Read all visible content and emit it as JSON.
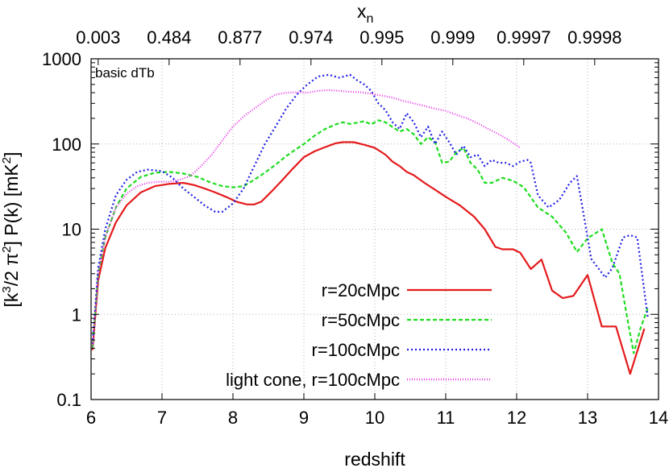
{
  "chart_data": {
    "type": "line",
    "annotation": "basic dTb",
    "xlabel": "redshift",
    "ylabel_parts": {
      "a": "[k",
      "a_sup": "3",
      "b": "/2 π",
      "b_sup": "2",
      "c": "] P(k) [mK",
      "c_sup": "2",
      "d": "]"
    },
    "top_axis_label": {
      "main": "x",
      "sub": "n"
    },
    "xlim": [
      6,
      14
    ],
    "ylim": [
      0.1,
      1000
    ],
    "yscale": "log",
    "grid": true,
    "legend_position": "bottom-right",
    "x_ticks": [
      "6",
      "7",
      "8",
      "9",
      "10",
      "11",
      "12",
      "13",
      "14"
    ],
    "y_ticks": [
      "0.1",
      "1",
      "10",
      "100",
      "1000"
    ],
    "top_ticks": [
      {
        "z": 6.1,
        "label": "0.003"
      },
      {
        "z": 7.1,
        "label": "0.484"
      },
      {
        "z": 8.1,
        "label": "0.877"
      },
      {
        "z": 9.1,
        "label": "0.974"
      },
      {
        "z": 10.1,
        "label": "0.995"
      },
      {
        "z": 11.1,
        "label": "0.999"
      },
      {
        "z": 12.1,
        "label": "0.9997"
      },
      {
        "z": 13.1,
        "label": "0.9998"
      }
    ],
    "series": [
      {
        "name": "r=20cMpc",
        "color": "#e41a1c",
        "dash": "solid",
        "points": [
          [
            6.02,
            0.38
          ],
          [
            6.1,
            2.5
          ],
          [
            6.2,
            6
          ],
          [
            6.35,
            12
          ],
          [
            6.5,
            19
          ],
          [
            6.7,
            27
          ],
          [
            6.9,
            32
          ],
          [
            7.1,
            34
          ],
          [
            7.3,
            35
          ],
          [
            7.45,
            33
          ],
          [
            7.6,
            30
          ],
          [
            7.75,
            27
          ],
          [
            7.9,
            24
          ],
          [
            8.05,
            21
          ],
          [
            8.2,
            19.5
          ],
          [
            8.3,
            19.5
          ],
          [
            8.4,
            21
          ],
          [
            8.55,
            28
          ],
          [
            8.7,
            38
          ],
          [
            8.85,
            52
          ],
          [
            9.0,
            70
          ],
          [
            9.15,
            82
          ],
          [
            9.3,
            92
          ],
          [
            9.45,
            102
          ],
          [
            9.55,
            105
          ],
          [
            9.7,
            105
          ],
          [
            9.85,
            98
          ],
          [
            10.0,
            90
          ],
          [
            10.15,
            75
          ],
          [
            10.25,
            62
          ],
          [
            10.35,
            55
          ],
          [
            10.45,
            47
          ],
          [
            10.55,
            43
          ],
          [
            10.7,
            35
          ],
          [
            10.85,
            29
          ],
          [
            11.0,
            24
          ],
          [
            11.2,
            19
          ],
          [
            11.4,
            14
          ],
          [
            11.55,
            10
          ],
          [
            11.7,
            6.2
          ],
          [
            11.8,
            5.8
          ],
          [
            11.95,
            5.8
          ],
          [
            12.05,
            5.3
          ],
          [
            12.2,
            3.4
          ],
          [
            12.35,
            4.4
          ],
          [
            12.5,
            1.9
          ],
          [
            12.65,
            1.55
          ],
          [
            12.8,
            1.65
          ],
          [
            13.0,
            2.9
          ],
          [
            13.2,
            0.72
          ],
          [
            13.4,
            0.72
          ],
          [
            13.6,
            0.2
          ],
          [
            13.8,
            0.68
          ]
        ]
      },
      {
        "name": "r=50cMpc",
        "color": "#1edc1e",
        "dash": "dashed",
        "points": [
          [
            6.02,
            0.4
          ],
          [
            6.1,
            3
          ],
          [
            6.2,
            8
          ],
          [
            6.35,
            18
          ],
          [
            6.5,
            30
          ],
          [
            6.7,
            41
          ],
          [
            6.9,
            46
          ],
          [
            7.1,
            47
          ],
          [
            7.3,
            45
          ],
          [
            7.5,
            41
          ],
          [
            7.7,
            35
          ],
          [
            7.85,
            32
          ],
          [
            8.0,
            31
          ],
          [
            8.15,
            32
          ],
          [
            8.3,
            38
          ],
          [
            8.45,
            46
          ],
          [
            8.6,
            57
          ],
          [
            8.75,
            72
          ],
          [
            8.9,
            88
          ],
          [
            9.0,
            100
          ],
          [
            9.15,
            125
          ],
          [
            9.3,
            150
          ],
          [
            9.45,
            170
          ],
          [
            9.55,
            180
          ],
          [
            9.65,
            172
          ],
          [
            9.75,
            178
          ],
          [
            9.85,
            185
          ],
          [
            9.95,
            170
          ],
          [
            10.05,
            190
          ],
          [
            10.15,
            180
          ],
          [
            10.25,
            158
          ],
          [
            10.35,
            140
          ],
          [
            10.45,
            150
          ],
          [
            10.55,
            130
          ],
          [
            10.65,
            100
          ],
          [
            10.75,
            120
          ],
          [
            10.85,
            105
          ],
          [
            10.95,
            60
          ],
          [
            11.05,
            62
          ],
          [
            11.15,
            80
          ],
          [
            11.25,
            90
          ],
          [
            11.35,
            60
          ],
          [
            11.45,
            50
          ],
          [
            11.55,
            35
          ],
          [
            11.65,
            35
          ],
          [
            11.8,
            40
          ],
          [
            11.95,
            37
          ],
          [
            12.1,
            31
          ],
          [
            12.3,
            18
          ],
          [
            12.5,
            14
          ],
          [
            12.7,
            9
          ],
          [
            12.85,
            5.4
          ],
          [
            13.0,
            7.8
          ],
          [
            13.2,
            10
          ],
          [
            13.35,
            4
          ],
          [
            13.45,
            3
          ],
          [
            13.55,
            1
          ],
          [
            13.65,
            0.35
          ],
          [
            13.75,
            0.7
          ],
          [
            13.85,
            1.2
          ]
        ]
      },
      {
        "name": "r=100cMpc",
        "color": "#1e1ee6",
        "dash": "dotted",
        "points": [
          [
            6.02,
            0.45
          ],
          [
            6.1,
            3.5
          ],
          [
            6.2,
            10
          ],
          [
            6.35,
            25
          ],
          [
            6.5,
            38
          ],
          [
            6.65,
            47
          ],
          [
            6.8,
            50
          ],
          [
            7.0,
            48
          ],
          [
            7.15,
            40
          ],
          [
            7.3,
            30
          ],
          [
            7.45,
            24
          ],
          [
            7.6,
            19
          ],
          [
            7.75,
            16
          ],
          [
            7.85,
            16
          ],
          [
            8.0,
            20
          ],
          [
            8.15,
            30
          ],
          [
            8.3,
            55
          ],
          [
            8.45,
            100
          ],
          [
            8.6,
            160
          ],
          [
            8.75,
            260
          ],
          [
            8.9,
            380
          ],
          [
            9.05,
            500
          ],
          [
            9.2,
            620
          ],
          [
            9.35,
            650
          ],
          [
            9.5,
            600
          ],
          [
            9.65,
            650
          ],
          [
            9.75,
            560
          ],
          [
            9.85,
            500
          ],
          [
            9.95,
            420
          ],
          [
            10.05,
            300
          ],
          [
            10.15,
            250
          ],
          [
            10.25,
            180
          ],
          [
            10.35,
            150
          ],
          [
            10.45,
            230
          ],
          [
            10.55,
            180
          ],
          [
            10.65,
            120
          ],
          [
            10.75,
            160
          ],
          [
            10.85,
            100
          ],
          [
            10.95,
            140
          ],
          [
            11.05,
            105
          ],
          [
            11.15,
            75
          ],
          [
            11.25,
            95
          ],
          [
            11.35,
            70
          ],
          [
            11.45,
            75
          ],
          [
            11.55,
            55
          ],
          [
            11.65,
            65
          ],
          [
            11.75,
            60
          ],
          [
            11.85,
            60
          ],
          [
            11.95,
            55
          ],
          [
            12.05,
            62
          ],
          [
            12.15,
            65
          ],
          [
            12.2,
            60
          ],
          [
            12.3,
            25
          ],
          [
            12.45,
            18
          ],
          [
            12.6,
            22
          ],
          [
            12.75,
            35
          ],
          [
            12.85,
            42
          ],
          [
            13.0,
            8
          ],
          [
            13.05,
            4.5
          ],
          [
            13.25,
            2.7
          ],
          [
            13.35,
            3.5
          ],
          [
            13.5,
            8
          ],
          [
            13.6,
            8.5
          ],
          [
            13.7,
            8
          ],
          [
            13.85,
            0.9
          ]
        ]
      },
      {
        "name": "light cone, r=100cMpc",
        "color": "#e633e6",
        "dash": "fine-dotted",
        "points": [
          [
            6.02,
            0.4
          ],
          [
            6.1,
            3
          ],
          [
            6.2,
            8
          ],
          [
            6.35,
            18
          ],
          [
            6.5,
            26
          ],
          [
            6.65,
            32
          ],
          [
            6.8,
            35
          ],
          [
            6.95,
            36
          ],
          [
            7.1,
            36
          ],
          [
            7.25,
            38
          ],
          [
            7.4,
            42
          ],
          [
            7.55,
            55
          ],
          [
            7.7,
            75
          ],
          [
            7.85,
            110
          ],
          [
            8.0,
            160
          ],
          [
            8.15,
            210
          ],
          [
            8.3,
            260
          ],
          [
            8.45,
            320
          ],
          [
            8.6,
            380
          ],
          [
            8.75,
            400
          ],
          [
            8.9,
            405
          ],
          [
            9.05,
            400
          ],
          [
            9.2,
            420
          ],
          [
            9.35,
            430
          ],
          [
            9.5,
            420
          ],
          [
            9.65,
            410
          ],
          [
            9.8,
            405
          ],
          [
            9.95,
            390
          ],
          [
            10.1,
            370
          ],
          [
            10.25,
            350
          ],
          [
            10.4,
            320
          ],
          [
            10.55,
            300
          ],
          [
            10.7,
            280
          ],
          [
            10.85,
            260
          ],
          [
            11.0,
            245
          ],
          [
            11.15,
            220
          ],
          [
            11.3,
            200
          ],
          [
            11.45,
            175
          ],
          [
            11.6,
            150
          ],
          [
            11.75,
            130
          ],
          [
            11.9,
            110
          ],
          [
            12.05,
            90
          ]
        ]
      }
    ]
  }
}
